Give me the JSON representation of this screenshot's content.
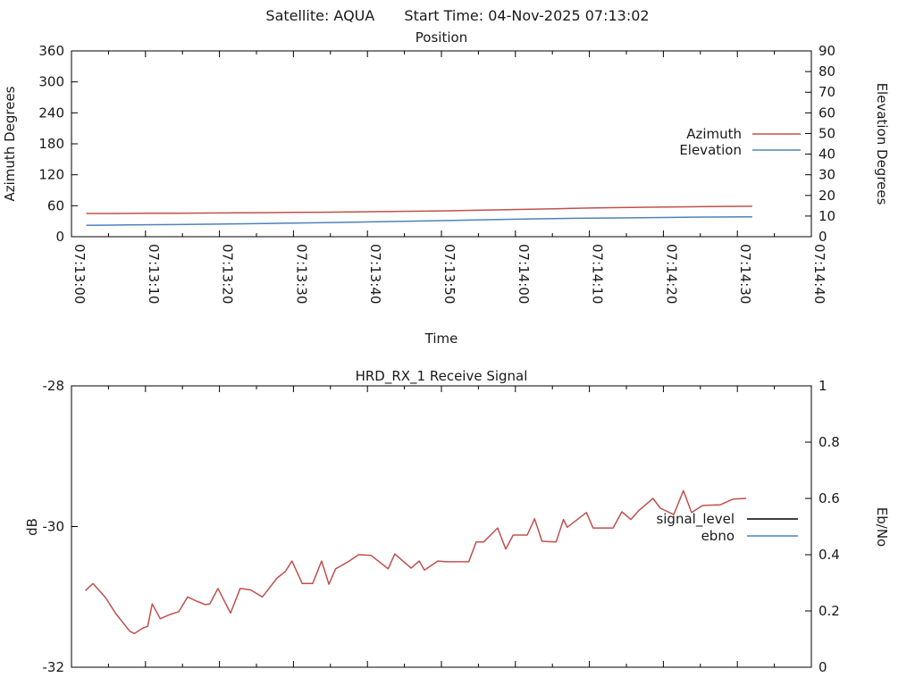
{
  "header": {
    "satellite": "Satellite: AQUA",
    "start_time": "Start Time: 04-Nov-2025 07:13:02"
  },
  "colors": {
    "azimuth": "#c0504d",
    "elevation": "#4f81bd",
    "signal_level_legend": "#000000",
    "signal_level_line": "#c0504d",
    "ebno": "#4f81bd",
    "axis": "#000000",
    "background": "#ffffff"
  },
  "chart_data": [
    {
      "type": "line",
      "title": "Position",
      "xlabel": "Time",
      "x_range_s": [
        0,
        100
      ],
      "x_ticks": [
        "07:13:00",
        "07:13:10",
        "07:13:20",
        "07:13:30",
        "07:13:40",
        "07:13:50",
        "07:14:00",
        "07:14:10",
        "07:14:20",
        "07:14:30",
        "07:14:40"
      ],
      "y_left": {
        "label": "Azimuth Degrees",
        "min": 0,
        "max": 360,
        "tick_step": 60
      },
      "y_right": {
        "label": "Elevation Degrees",
        "min": 0,
        "max": 90,
        "tick_step": 10
      },
      "legend": [
        {
          "name": "Azimuth",
          "color": "#c0504d"
        },
        {
          "name": "Elevation",
          "color": "#4f81bd"
        }
      ],
      "series": [
        {
          "name": "Azimuth",
          "axis": "left",
          "color": "#c0504d",
          "points": [
            [
              2,
              45.0
            ],
            [
              6,
              45.0
            ],
            [
              10,
              45.3
            ],
            [
              14,
              45.6
            ],
            [
              18,
              45.9
            ],
            [
              22,
              46.2
            ],
            [
              26,
              46.6
            ],
            [
              30,
              47.0
            ],
            [
              34,
              47.5
            ],
            [
              38,
              48.0
            ],
            [
              42,
              48.6
            ],
            [
              46,
              49.3
            ],
            [
              50,
              50.1
            ],
            [
              54,
              51.0
            ],
            [
              58,
              52.1
            ],
            [
              62,
              53.3
            ],
            [
              66,
              54.4
            ],
            [
              70,
              55.5
            ],
            [
              74,
              56.4
            ],
            [
              78,
              57.2
            ],
            [
              82,
              57.8
            ],
            [
              86,
              58.3
            ],
            [
              90,
              58.8
            ],
            [
              92,
              59.0
            ]
          ]
        },
        {
          "name": "Elevation",
          "axis": "right",
          "color": "#4f81bd",
          "points": [
            [
              2,
              5.5
            ],
            [
              8,
              5.7
            ],
            [
              14,
              5.9
            ],
            [
              20,
              6.1
            ],
            [
              26,
              6.4
            ],
            [
              32,
              6.7
            ],
            [
              38,
              7.0
            ],
            [
              44,
              7.4
            ],
            [
              50,
              7.8
            ],
            [
              56,
              8.2
            ],
            [
              62,
              8.6
            ],
            [
              68,
              8.9
            ],
            [
              74,
              9.1
            ],
            [
              80,
              9.3
            ],
            [
              86,
              9.5
            ],
            [
              92,
              9.6
            ]
          ]
        }
      ]
    },
    {
      "type": "line",
      "title": "HRD_RX_1 Receive Signal",
      "xlabel": "",
      "x_range_s": [
        0,
        100
      ],
      "x_ticks": [],
      "y_left": {
        "label": "dB",
        "min": -32,
        "max": -28,
        "tick_step": 2
      },
      "y_right": {
        "label": "Eb/No",
        "min": 0,
        "max": 1,
        "tick_step": 0.2
      },
      "legend": [
        {
          "name": "signal_level",
          "color": "#000000"
        },
        {
          "name": "ebno",
          "color": "#4f81bd"
        }
      ],
      "series": [
        {
          "name": "signal_level",
          "axis": "left",
          "color": "#c0504d",
          "points": [
            [
              1.9,
              -30.91
            ],
            [
              2.9,
              -30.81
            ],
            [
              4.6,
              -31.01
            ],
            [
              6.0,
              -31.24
            ],
            [
              7.9,
              -31.49
            ],
            [
              8.5,
              -31.52
            ],
            [
              9.7,
              -31.44
            ],
            [
              10.3,
              -31.42
            ],
            [
              10.9,
              -31.1
            ],
            [
              12.0,
              -31.31
            ],
            [
              13.3,
              -31.25
            ],
            [
              14.5,
              -31.21
            ],
            [
              15.7,
              -31.0
            ],
            [
              16.9,
              -31.06
            ],
            [
              18.1,
              -31.11
            ],
            [
              18.7,
              -31.1
            ],
            [
              19.8,
              -30.88
            ],
            [
              21.5,
              -31.23
            ],
            [
              22.8,
              -30.88
            ],
            [
              24.2,
              -30.9
            ],
            [
              25.8,
              -31.0
            ],
            [
              27.8,
              -30.73
            ],
            [
              28.9,
              -30.64
            ],
            [
              29.8,
              -30.49
            ],
            [
              31.2,
              -30.81
            ],
            [
              32.6,
              -30.81
            ],
            [
              33.8,
              -30.49
            ],
            [
              34.8,
              -30.82
            ],
            [
              35.7,
              -30.6
            ],
            [
              37.4,
              -30.5
            ],
            [
              38.8,
              -30.4
            ],
            [
              40.5,
              -30.41
            ],
            [
              42.8,
              -30.6
            ],
            [
              43.7,
              -30.39
            ],
            [
              45.9,
              -30.59
            ],
            [
              47.0,
              -30.49
            ],
            [
              47.7,
              -30.62
            ],
            [
              49.5,
              -30.49
            ],
            [
              50.7,
              -30.5
            ],
            [
              53.7,
              -30.5
            ],
            [
              54.7,
              -30.22
            ],
            [
              55.7,
              -30.22
            ],
            [
              57.6,
              -30.02
            ],
            [
              58.7,
              -30.32
            ],
            [
              59.7,
              -30.12
            ],
            [
              61.6,
              -30.12
            ],
            [
              62.6,
              -29.89
            ],
            [
              63.6,
              -30.21
            ],
            [
              65.5,
              -30.22
            ],
            [
              66.5,
              -29.9
            ],
            [
              67.0,
              -30.01
            ],
            [
              69.6,
              -29.8
            ],
            [
              70.5,
              -30.02
            ],
            [
              73.2,
              -30.02
            ],
            [
              74.4,
              -29.79
            ],
            [
              75.6,
              -29.9
            ],
            [
              76.7,
              -29.77
            ],
            [
              78.6,
              -29.6
            ],
            [
              79.6,
              -29.74
            ],
            [
              81.4,
              -29.83
            ],
            [
              82.7,
              -29.49
            ],
            [
              83.8,
              -29.8
            ],
            [
              85.3,
              -29.7
            ],
            [
              87.7,
              -29.69
            ],
            [
              89.4,
              -29.61
            ],
            [
              91.2,
              -29.6
            ]
          ]
        },
        {
          "name": "ebno",
          "axis": "right",
          "color": "#4f81bd",
          "points": []
        }
      ]
    }
  ]
}
